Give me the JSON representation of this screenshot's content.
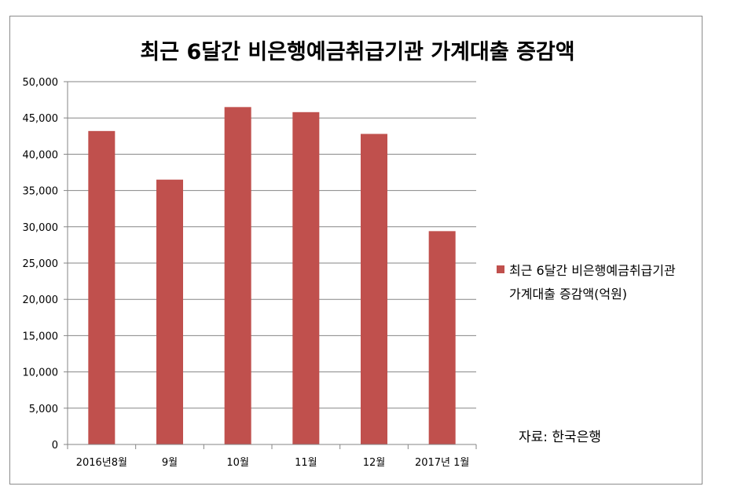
{
  "chart_data": {
    "type": "bar",
    "title": "최근 6달간 비은행예금취급기관 가계대출 증감액",
    "categories": [
      "2016년8월",
      "9월",
      "10월",
      "11월",
      "12월",
      "2017년 1월"
    ],
    "series": [
      {
        "name": "최근 6달간 비은행예금취급기관 가계대출 증감액(억원)",
        "name_lines": [
          "최근 6달간 비은행예금취급기관",
          "가계대출 증감액(억원)"
        ],
        "values": [
          43200,
          36500,
          46500,
          45800,
          42800,
          29400
        ],
        "color": "#c0504d"
      }
    ],
    "ylim": [
      0,
      50000
    ],
    "yticks": [
      "0",
      "5,000",
      "10,000",
      "15,000",
      "20,000",
      "25,000",
      "30,000",
      "35,000",
      "40,000",
      "45,000",
      "50,000"
    ],
    "xlabel": "",
    "ylabel": "",
    "grid": true,
    "legend_position": "right"
  },
  "annotation": "자료: 한국은행",
  "colors": {
    "bar": "#c0504d",
    "grid": "#868686",
    "frame": "#8c8c8c"
  }
}
